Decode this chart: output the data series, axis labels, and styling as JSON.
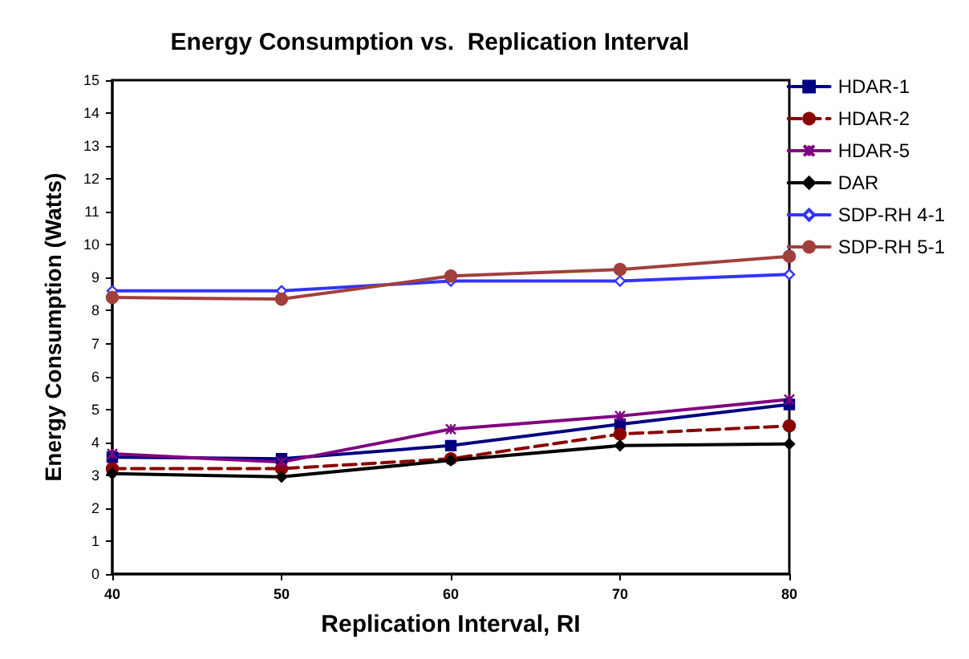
{
  "chart_data": {
    "type": "line",
    "title": "Energy Consumption vs.  Replication Interval",
    "xlabel": "Replication Interval, RI",
    "ylabel": "Energy Consumption (Watts)",
    "x": [
      40,
      50,
      60,
      70,
      80
    ],
    "xlim": [
      40,
      80
    ],
    "xticks": [
      40,
      50,
      60,
      70,
      80
    ],
    "ylim": [
      0,
      15
    ],
    "yticks": [
      0,
      1,
      2,
      3,
      4,
      5,
      6,
      7,
      8,
      9,
      10,
      11,
      12,
      13,
      14,
      15
    ],
    "grid": false,
    "legend": "right",
    "series": [
      {
        "name": "HDAR-1",
        "color": "#000080",
        "marker": "square",
        "line_style": "solid",
        "values": [
          3.55,
          3.5,
          3.9,
          4.55,
          5.15
        ]
      },
      {
        "name": "HDAR-2",
        "color": "#8b0000",
        "marker": "circle",
        "line_style": "dashed",
        "values": [
          3.2,
          3.2,
          3.5,
          4.25,
          4.5
        ]
      },
      {
        "name": "HDAR-5",
        "color": "#800080",
        "marker": "cross",
        "line_style": "solid",
        "values": [
          3.65,
          3.4,
          4.4,
          4.8,
          5.3
        ]
      },
      {
        "name": "DAR",
        "color": "#000000",
        "marker": "diamond",
        "line_style": "solid",
        "values": [
          3.05,
          2.95,
          3.45,
          3.9,
          3.95
        ]
      },
      {
        "name": "SDP-RH 4-1",
        "color": "#3333ff",
        "marker": "diamond",
        "line_style": "solid",
        "values": [
          8.6,
          8.6,
          8.9,
          8.9,
          9.1
        ]
      },
      {
        "name": "SDP-RH 5-1",
        "color": "#a0403c",
        "marker": "circle",
        "line_style": "solid",
        "values": [
          8.4,
          8.35,
          9.05,
          9.25,
          9.65
        ]
      }
    ]
  }
}
